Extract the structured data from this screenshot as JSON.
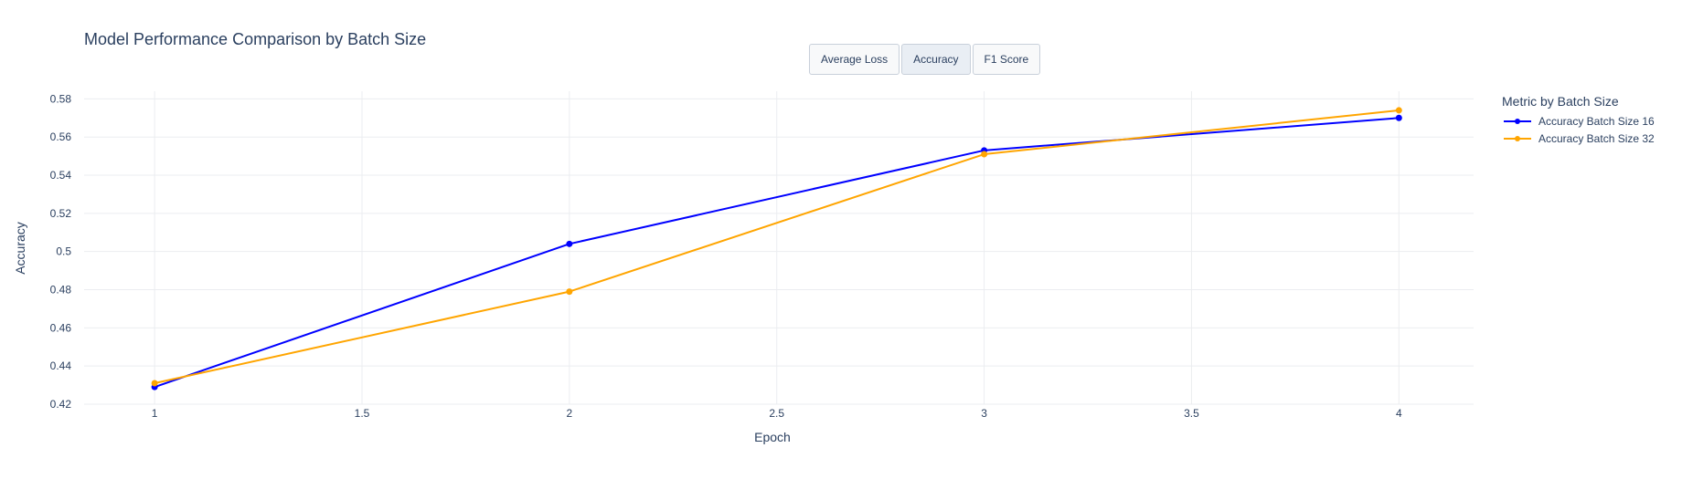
{
  "title": "Model Performance Comparison by Batch Size",
  "buttons": [
    {
      "label": "Average Loss",
      "active": false
    },
    {
      "label": "Accuracy",
      "active": true
    },
    {
      "label": "F1 Score",
      "active": false
    }
  ],
  "legend": {
    "title": "Metric by Batch Size",
    "placement": "right"
  },
  "colors": {
    "series1": "#0000ff",
    "series2": "#ffa500",
    "grid": "#ebedf0",
    "text": "#2a3f5f"
  },
  "chart_data": {
    "type": "line",
    "title": "Model Performance Comparison by Batch Size",
    "xlabel": "Epoch",
    "ylabel": "Accuracy",
    "x": [
      1,
      2,
      3,
      4
    ],
    "xlim": [
      0.83,
      4.18
    ],
    "ylim": [
      0.42,
      0.584
    ],
    "xticks": [
      1,
      1.5,
      2,
      2.5,
      3,
      3.5,
      4
    ],
    "xtick_labels": [
      "1",
      "1.5",
      "2",
      "2.5",
      "3",
      "3.5",
      "4"
    ],
    "yticks": [
      0.42,
      0.44,
      0.46,
      0.48,
      0.5,
      0.52,
      0.54,
      0.56,
      0.58
    ],
    "ytick_labels": [
      "0.42",
      "0.44",
      "0.46",
      "0.48",
      "0.5",
      "0.52",
      "0.54",
      "0.56",
      "0.58"
    ],
    "grid": true,
    "series": [
      {
        "name": "Accuracy Batch Size 16",
        "values": [
          0.429,
          0.504,
          0.553,
          0.57
        ]
      },
      {
        "name": "Accuracy Batch Size 32",
        "values": [
          0.431,
          0.479,
          0.551,
          0.574
        ]
      }
    ]
  }
}
